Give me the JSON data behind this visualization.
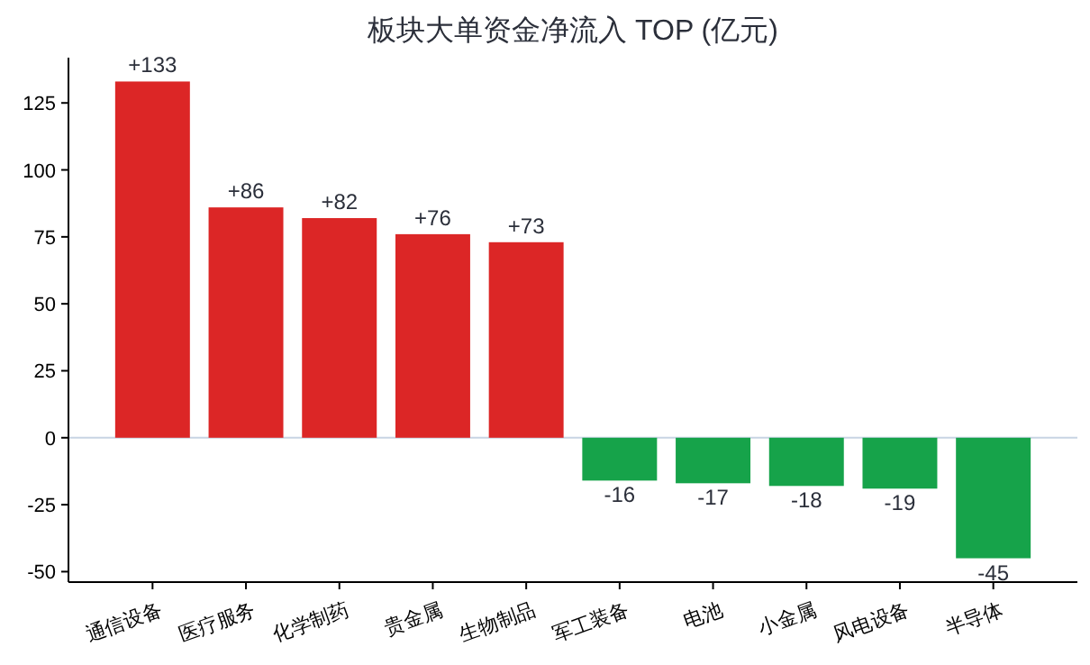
{
  "chart_data": {
    "type": "bar",
    "title": "板块大单资金净流入 TOP (亿元)",
    "categories": [
      "通信设备",
      "医疗服务",
      "化学制药",
      "贵金属",
      "生物制品",
      "军工装备",
      "电池",
      "小金属",
      "风电设备",
      "半导体"
    ],
    "values": [
      133,
      86,
      82,
      76,
      73,
      -16,
      -17,
      -18,
      -19,
      -45
    ],
    "colors": [
      "#dc2626",
      "#dc2626",
      "#dc2626",
      "#dc2626",
      "#dc2626",
      "#16a34a",
      "#16a34a",
      "#16a34a",
      "#16a34a",
      "#16a34a"
    ],
    "value_labels": [
      "+133",
      "+86",
      "+82",
      "+76",
      "+73",
      "-16",
      "-17",
      "-18",
      "-19",
      "-45"
    ],
    "ylim": [
      -53.9,
      141.9
    ],
    "yticks": [
      -50,
      -25,
      0,
      25,
      50,
      75,
      100,
      125
    ],
    "ref_lines": [
      {
        "axis": "y",
        "value": 0,
        "color": "#c8d4e3"
      }
    ],
    "grid": false
  }
}
